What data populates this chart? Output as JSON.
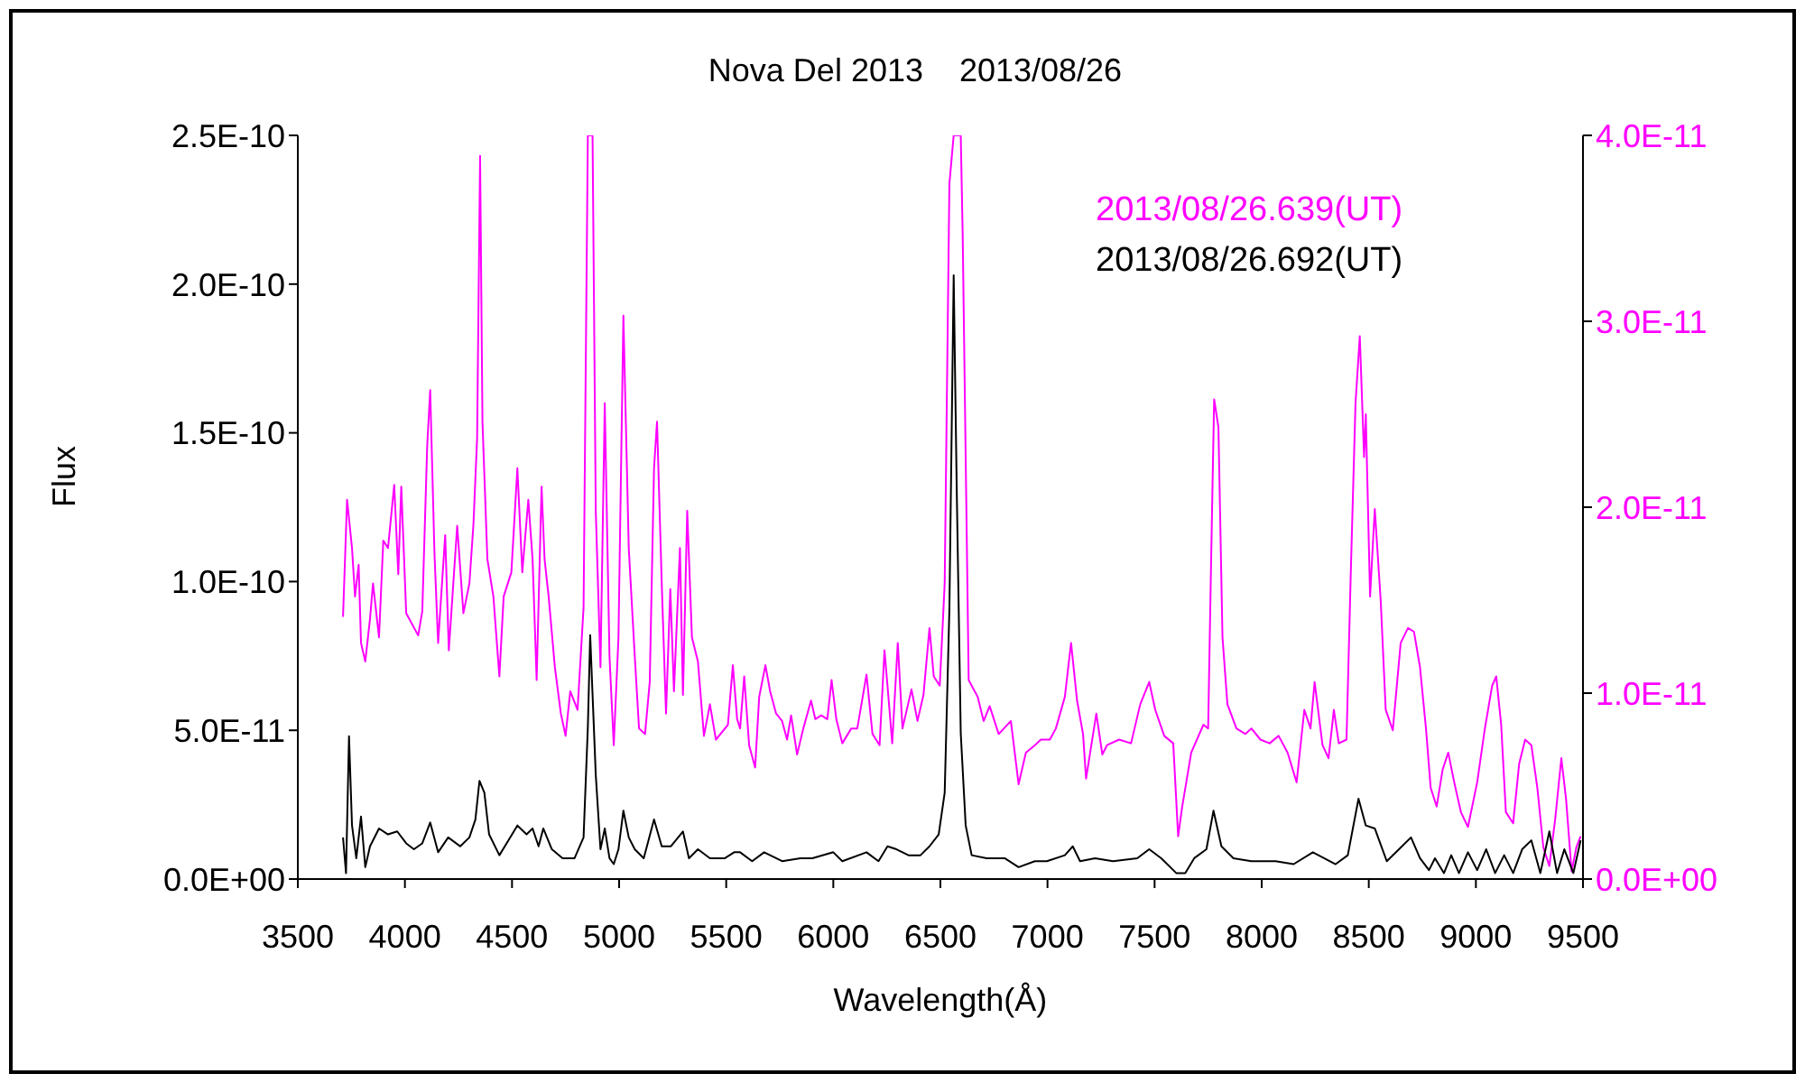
{
  "chart_data": {
    "type": "line",
    "title": "Nova Del 2013    2013/08/26",
    "xlabel": "Wavelength(Å)",
    "ylabel": "Flux",
    "xlim": [
      3500,
      9500
    ],
    "xticks": [
      3500,
      4000,
      4500,
      5000,
      5500,
      6000,
      6500,
      7000,
      7500,
      8000,
      8500,
      9000,
      9500
    ],
    "ylim": [
      0,
      2.5e-10
    ],
    "yticks": [
      {
        "value": 0,
        "label": "0.0E+00"
      },
      {
        "value": 5e-11,
        "label": "5.0E-11"
      },
      {
        "value": 1e-10,
        "label": "1.0E-10"
      },
      {
        "value": 1.5e-10,
        "label": "1.5E-10"
      },
      {
        "value": 2e-10,
        "label": "2.0E-10"
      },
      {
        "value": 2.5e-10,
        "label": "2.5E-10"
      }
    ],
    "y2lim": [
      0,
      4e-11
    ],
    "y2ticks": [
      {
        "value": 0,
        "label": "0.0E+00"
      },
      {
        "value": 1e-11,
        "label": "1.0E-11"
      },
      {
        "value": 2e-11,
        "label": "2.0E-11"
      },
      {
        "value": 3e-11,
        "label": "3.0E-11"
      },
      {
        "value": 4e-11,
        "label": "4.0E-11"
      }
    ],
    "grid": false,
    "legend": "top right",
    "series": [
      {
        "name": "2013/08/26.639(UT)",
        "color": "#ff00ff",
        "axis": "y2",
        "x": [
          3711,
          3730,
          3753,
          3767,
          3784,
          3795,
          3815,
          3837,
          3851,
          3879,
          3899,
          3921,
          3950,
          3969,
          3983,
          4006,
          4062,
          4081,
          4104,
          4118,
          4138,
          4155,
          4188,
          4205,
          4244,
          4273,
          4301,
          4320,
          4337,
          4351,
          4362,
          4385,
          4413,
          4441,
          4461,
          4497,
          4525,
          4548,
          4576,
          4596,
          4615,
          4638,
          4652,
          4671,
          4700,
          4728,
          4750,
          4772,
          4806,
          4834,
          4854,
          4876,
          4891,
          4913,
          4933,
          4955,
          4975,
          4997,
          5020,
          5045,
          5073,
          5093,
          5121,
          5143,
          5163,
          5177,
          5199,
          5219,
          5239,
          5256,
          5284,
          5298,
          5318,
          5340,
          5368,
          5396,
          5424,
          5452,
          5508,
          5531,
          5551,
          5565,
          5584,
          5607,
          5635,
          5654,
          5683,
          5705,
          5733,
          5761,
          5784,
          5803,
          5831,
          5860,
          5896,
          5916,
          5944,
          5972,
          5992,
          6014,
          6042,
          6084,
          6112,
          6155,
          6183,
          6216,
          6239,
          6253,
          6275,
          6301,
          6323,
          6365,
          6393,
          6421,
          6449,
          6469,
          6497,
          6520,
          6542,
          6562,
          6595,
          6604,
          6632,
          6674,
          6702,
          6730,
          6772,
          6829,
          6865,
          6899,
          6941,
          6969,
          7011,
          7039,
          7081,
          7110,
          7138,
          7166,
          7180,
          7228,
          7256,
          7278,
          7334,
          7390,
          7433,
          7475,
          7503,
          7545,
          7587,
          7610,
          7629,
          7671,
          7728,
          7750,
          7764,
          7778,
          7798,
          7817,
          7840,
          7882,
          7924,
          7952,
          7994,
          8037,
          8079,
          8121,
          8163,
          8199,
          8228,
          8247,
          8284,
          8312,
          8337,
          8360,
          8396,
          8416,
          8438,
          8458,
          8478,
          8486,
          8506,
          8528,
          8556,
          8579,
          8612,
          8649,
          8683,
          8711,
          8739,
          8767,
          8789,
          8817,
          8845,
          8871,
          8899,
          8930,
          8963,
          9006,
          9042,
          9076,
          9095,
          9118,
          9140,
          9174,
          9202,
          9230,
          9259,
          9287,
          9315,
          9343,
          9371,
          9399,
          9421,
          9447,
          9469,
          9489
        ],
        "values": [
          1.41e-11,
          2.04e-11,
          1.78e-11,
          1.52e-11,
          1.69e-11,
          1.27e-11,
          1.17e-11,
          1.4e-11,
          1.59e-11,
          1.3e-11,
          1.82e-11,
          1.78e-11,
          2.12e-11,
          1.64e-11,
          2.11e-11,
          1.43e-11,
          1.31e-11,
          1.44e-11,
          2.33e-11,
          2.63e-11,
          1.75e-11,
          1.27e-11,
          1.85e-11,
          1.23e-11,
          1.9e-11,
          1.43e-11,
          1.59e-11,
          1.91e-11,
          2.37e-11,
          3.89e-11,
          2.46e-11,
          1.72e-11,
          1.52e-11,
          1.09e-11,
          1.52e-11,
          1.65e-11,
          2.21e-11,
          1.65e-11,
          2.04e-11,
          1.72e-11,
          1.07e-11,
          2.11e-11,
          1.72e-11,
          1.52e-11,
          1.14e-11,
          8.9e-12,
          7.7e-12,
          1.01e-11,
          9.1e-12,
          1.46e-11,
          4e-11,
          4e-11,
          1.98e-11,
          1.14e-11,
          2.56e-11,
          1.2e-11,
          7.2e-12,
          1.3e-11,
          3.03e-11,
          1.78e-11,
          1.2e-11,
          8.1e-12,
          7.8e-12,
          1.06e-11,
          2.21e-11,
          2.46e-11,
          1.59e-11,
          8.9e-12,
          1.56e-11,
          1.01e-11,
          1.78e-11,
          9.9e-12,
          1.98e-11,
          1.3e-11,
          1.17e-11,
          7.7e-12,
          9.4e-12,
          7.5e-12,
          8.3e-12,
          1.15e-11,
          8.6e-12,
          8.1e-12,
          1.09e-11,
          7.2e-12,
          6e-12,
          9.8e-12,
          1.15e-11,
          1.01e-11,
          8.9e-12,
          8.5e-12,
          7.5e-12,
          8.8e-12,
          6.7e-12,
          8.1e-12,
          9.6e-12,
          8.6e-12,
          8.8e-12,
          8.6e-12,
          1.07e-11,
          8.6e-12,
          7.3e-12,
          8.1e-12,
          8.1e-12,
          1.1e-11,
          7.8e-12,
          7.2e-12,
          1.23e-11,
          1.04e-11,
          7.3e-12,
          1.27e-11,
          8.1e-12,
          1.02e-11,
          8.5e-12,
          9.9e-12,
          1.35e-11,
          1.09e-11,
          1.04e-11,
          1.59e-11,
          3.74e-11,
          4e-11,
          4e-11,
          3.47e-11,
          1.07e-11,
          9.8e-12,
          8.5e-12,
          9.3e-12,
          7.8e-12,
          8.5e-12,
          5.1e-12,
          6.8e-12,
          7.2e-12,
          7.5e-12,
          7.5e-12,
          8.1e-12,
          9.8e-12,
          1.27e-11,
          9.6e-12,
          7.8e-12,
          5.4e-12,
          8.9e-12,
          6.7e-12,
          7.2e-12,
          7.5e-12,
          7.3e-12,
          9.4e-12,
          1.06e-11,
          9.1e-12,
          7.7e-12,
          7.3e-12,
          2.3e-12,
          3.9e-12,
          6.8e-12,
          8.3e-12,
          8.1e-12,
          1.72e-11,
          2.58e-11,
          2.43e-11,
          1.3e-11,
          9.4e-12,
          8.1e-12,
          7.8e-12,
          8.1e-12,
          7.5e-12,
          7.3e-12,
          7.7e-12,
          6.8e-12,
          5.2e-12,
          9.1e-12,
          8.1e-12,
          1.06e-11,
          7.2e-12,
          6.5e-12,
          9.1e-12,
          7.3e-12,
          7.5e-12,
          1.65e-11,
          2.56e-11,
          2.92e-11,
          2.27e-11,
          2.5e-11,
          1.52e-11,
          1.99e-11,
          1.49e-11,
          9.1e-12,
          8e-12,
          1.27e-11,
          1.35e-11,
          1.33e-11,
          1.14e-11,
          8.1e-12,
          4.9e-12,
          3.9e-12,
          5.9e-12,
          6.8e-12,
          5.2e-12,
          3.6e-12,
          2.8e-12,
          5.2e-12,
          8.1e-12,
          1.04e-11,
          1.09e-11,
          8.3e-12,
          3.6e-12,
          3e-12,
          6.2e-12,
          7.5e-12,
          7.2e-12,
          4.9e-12,
          1.7e-12,
          7e-13,
          3.3e-12,
          6.5e-12,
          4.3e-12,
          4e-13,
          1.7e-12,
          2.3e-12
        ]
      },
      {
        "name": "2013/08/26.692(UT)",
        "color": "#000000",
        "x": [
          3711,
          3725,
          3739,
          3753,
          3773,
          3795,
          3815,
          3837,
          3879,
          3921,
          3964,
          4006,
          4042,
          4081,
          4118,
          4155,
          4202,
          4258,
          4301,
          4329,
          4348,
          4371,
          4393,
          4441,
          4483,
          4525,
          4568,
          4596,
          4624,
          4646,
          4686,
          4736,
          4792,
          4834,
          4854,
          4865,
          4876,
          4891,
          4913,
          4933,
          4955,
          4975,
          4997,
          5020,
          5045,
          5073,
          5115,
          5163,
          5199,
          5242,
          5298,
          5326,
          5368,
          5424,
          5494,
          5537,
          5565,
          5621,
          5677,
          5761,
          5846,
          5902,
          6000,
          6042,
          6155,
          6211,
          6253,
          6295,
          6351,
          6407,
          6449,
          6492,
          6520,
          6542,
          6562,
          6576,
          6595,
          6618,
          6646,
          6716,
          6800,
          6865,
          6941,
          6997,
          7081,
          7118,
          7152,
          7222,
          7306,
          7419,
          7475,
          7531,
          7601,
          7643,
          7685,
          7742,
          7775,
          7812,
          7868,
          7952,
          8065,
          8149,
          8239,
          8345,
          8402,
          8452,
          8486,
          8528,
          8584,
          8641,
          8697,
          8739,
          8781,
          8809,
          8851,
          8885,
          8921,
          8963,
          9006,
          9048,
          9090,
          9132,
          9174,
          9216,
          9259,
          9301,
          9343,
          9379,
          9413,
          9455,
          9489
        ],
        "values": [
          1.4e-11,
          2e-12,
          4.8e-11,
          1.8e-11,
          7e-12,
          2.1e-11,
          4e-12,
          1.1e-11,
          1.7e-11,
          1.5e-11,
          1.6e-11,
          1.2e-11,
          1e-11,
          1.2e-11,
          1.9e-11,
          9e-12,
          1.4e-11,
          1.1e-11,
          1.4e-11,
          2e-11,
          3.3e-11,
          2.9e-11,
          1.5e-11,
          8e-12,
          1.3e-11,
          1.8e-11,
          1.5e-11,
          1.7e-11,
          1.1e-11,
          1.7e-11,
          1e-11,
          7e-12,
          7e-12,
          1.4e-11,
          5.1e-11,
          8.2e-11,
          6.2e-11,
          3.5e-11,
          1e-11,
          1.7e-11,
          7e-12,
          5e-12,
          1e-11,
          2.3e-11,
          1.4e-11,
          1e-11,
          7e-12,
          2e-11,
          1.1e-11,
          1.1e-11,
          1.6e-11,
          7e-12,
          1e-11,
          7e-12,
          7e-12,
          9e-12,
          9e-12,
          6e-12,
          9e-12,
          6e-12,
          7e-12,
          7e-12,
          9e-12,
          6e-12,
          9e-12,
          6e-12,
          1.1e-11,
          1e-11,
          8e-12,
          8e-12,
          1.1e-11,
          1.5e-11,
          2.9e-11,
          9.1e-11,
          2.03e-10,
          1.32e-10,
          4.9e-11,
          1.8e-11,
          8e-12,
          7e-12,
          7e-12,
          4e-12,
          6e-12,
          6e-12,
          8e-12,
          1.1e-11,
          6e-12,
          7e-12,
          6e-12,
          7e-12,
          1e-11,
          7e-12,
          2e-12,
          2e-12,
          7e-12,
          1e-11,
          2.3e-11,
          1.1e-11,
          7e-12,
          6e-12,
          6e-12,
          5e-12,
          9e-12,
          5e-12,
          8e-12,
          2.7e-11,
          1.8e-11,
          1.7e-11,
          6e-12,
          1e-11,
          1.4e-11,
          7e-12,
          3e-12,
          7e-12,
          2e-12,
          8e-12,
          2e-12,
          9e-12,
          3e-12,
          1e-11,
          2e-12,
          8e-12,
          2e-12,
          1e-11,
          1.3e-11,
          2e-12,
          1.6e-11,
          2e-12,
          1e-11,
          2e-12,
          1.3e-11
        ]
      }
    ]
  }
}
